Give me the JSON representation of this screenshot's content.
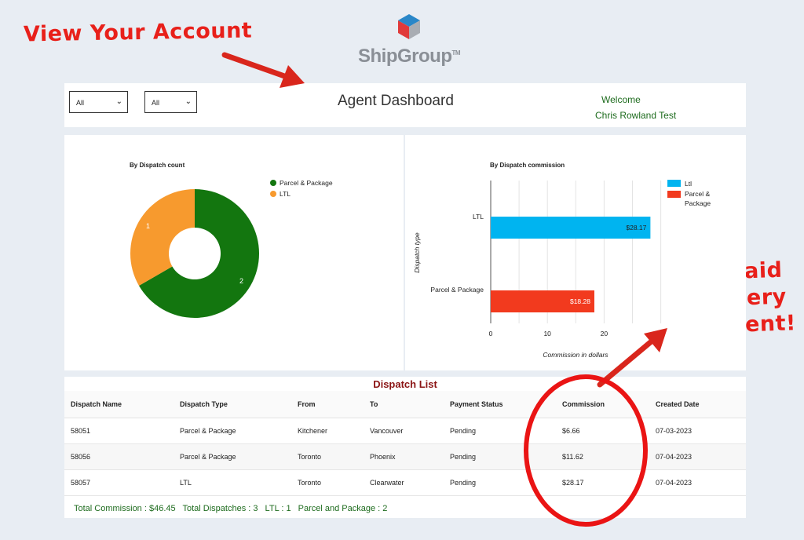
{
  "annotations": {
    "view_account": "View Your Account",
    "get_paid_line1": "Get Paid",
    "get_paid_line2": "On Every",
    "get_paid_line3": "Shipment!"
  },
  "brand": {
    "name": "ShipGroup",
    "tm": "TM"
  },
  "header": {
    "filter1": "All",
    "filter2": "All",
    "title": "Agent Dashboard",
    "welcome": "Welcome",
    "user": "Chris Rowland Test"
  },
  "pie_chart": {
    "title": "By Dispatch count",
    "legend": [
      "Parcel & Package",
      "LTL"
    ],
    "colors": [
      "#13760f",
      "#f79a2e"
    ]
  },
  "bar_chart": {
    "title": "By Dispatch commission",
    "xlabel": "Commission in dollars",
    "ylabel": "Dispatch type",
    "legend": [
      "Ltl",
      "Parcel &",
      "Package"
    ],
    "colors": [
      "#00b4f0",
      "#f23a1e"
    ]
  },
  "chart_data": [
    {
      "type": "pie",
      "title": "By Dispatch count",
      "categories": [
        "Parcel & Package",
        "LTL"
      ],
      "values": [
        2,
        1
      ],
      "labels": [
        "2",
        "1"
      ],
      "legend": "top-right"
    },
    {
      "type": "bar",
      "title": "By Dispatch commission",
      "orientation": "horizontal",
      "categories": [
        "LTL",
        "Parcel & Package"
      ],
      "values": [
        28.17,
        18.28
      ],
      "labels": [
        "$28.17",
        "$18.28"
      ],
      "xlabel": "Commission in dollars",
      "ylabel": "Dispatch type",
      "xticks": [
        "0",
        "10",
        "20"
      ],
      "xlim": [
        0,
        30
      ],
      "grid": true,
      "legend": "top-right"
    }
  ],
  "dispatch_list": {
    "title": "Dispatch List",
    "columns": [
      "Dispatch Name",
      "Dispatch Type",
      "From",
      "To",
      "Payment Status",
      "Commission",
      "Created Date"
    ],
    "rows": [
      [
        "58051",
        "Parcel & Package",
        "Kitchener",
        "Vancouver",
        "Pending",
        "$6.66",
        "07-03-2023"
      ],
      [
        "58056",
        "Parcel & Package",
        "Toronto",
        "Phoenix",
        "Pending",
        "$11.62",
        "07-04-2023"
      ],
      [
        "58057",
        "LTL",
        "Toronto",
        "Clearwater",
        "Pending",
        "$28.17",
        "07-04-2023"
      ]
    ],
    "totals": {
      "commission": "Total Commission : $46.45",
      "dispatches": "Total Dispatches : 3",
      "ltl": "LTL : 1",
      "parcel": "Parcel and Package : 2"
    }
  }
}
